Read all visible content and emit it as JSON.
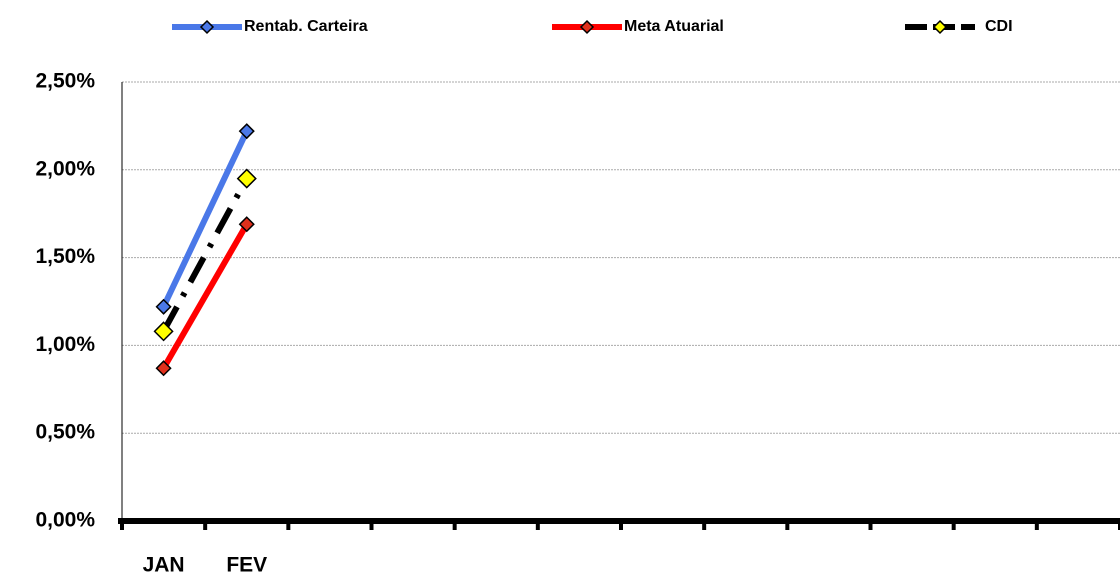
{
  "chart_data": {
    "type": "line",
    "categories": [
      "JAN",
      "FEV",
      null,
      null,
      null,
      null,
      null,
      null,
      null,
      null,
      null,
      null
    ],
    "series": [
      {
        "name": "Rentab. Carteira",
        "color": "#4a78e8",
        "marker_color": "#4a78e8",
        "values": [
          1.22,
          2.22,
          null,
          null,
          null,
          null,
          null,
          null,
          null,
          null,
          null,
          null
        ]
      },
      {
        "name": "Meta Atuarial",
        "color": "#ff0000",
        "marker_color": "#e0301c",
        "values": [
          0.87,
          1.69,
          null,
          null,
          null,
          null,
          null,
          null,
          null,
          null,
          null,
          null
        ]
      },
      {
        "name": "CDI",
        "color": "#000000",
        "marker_color": "#ffff00",
        "values": [
          1.08,
          1.95,
          null,
          null,
          null,
          null,
          null,
          null,
          null,
          null,
          null,
          null
        ]
      }
    ],
    "ylim": [
      0,
      2.5
    ],
    "yticks": [
      {
        "value": 0,
        "label": "0,00%"
      },
      {
        "value": 0.5,
        "label": "0,50%"
      },
      {
        "value": 1,
        "label": "1,00%"
      },
      {
        "value": 1.5,
        "label": "1,50%"
      },
      {
        "value": 2,
        "label": "2,00%"
      },
      {
        "value": 2.5,
        "label": "2,50%"
      }
    ],
    "grid": true,
    "legend": "top"
  }
}
